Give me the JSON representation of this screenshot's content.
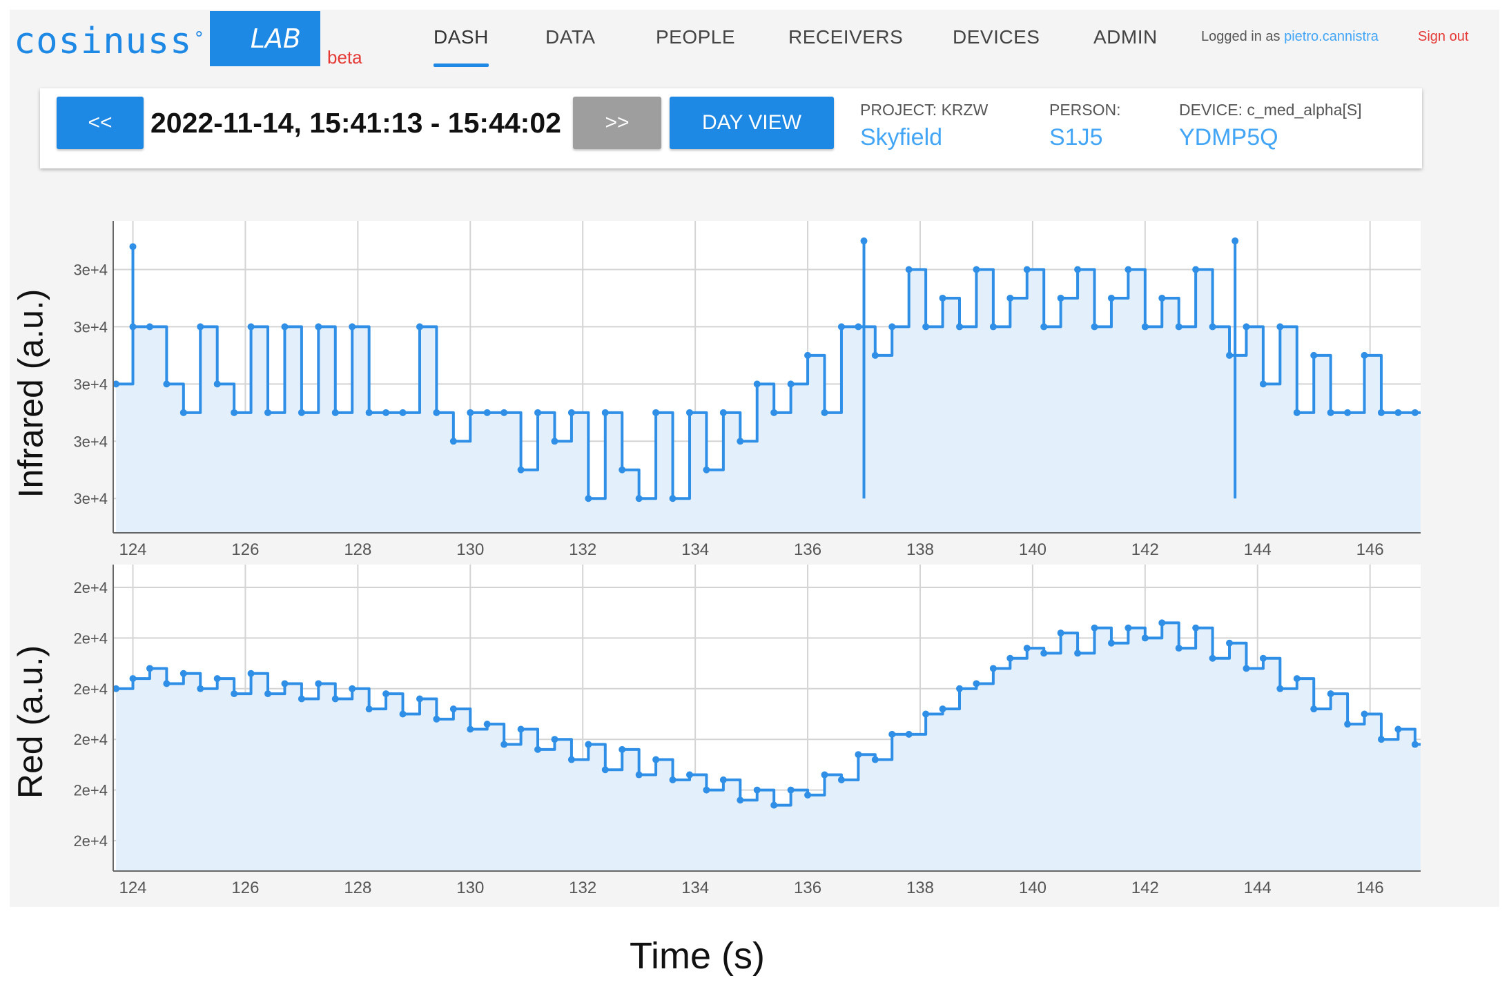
{
  "header": {
    "logo": "cosinuss",
    "logo_mark": "°",
    "lab": "LAB",
    "beta": "beta",
    "nav": [
      "DASH",
      "DATA",
      "PEOPLE",
      "RECEIVERS",
      "DEVICES",
      "ADMIN"
    ],
    "active_nav": "DASH",
    "logged_in_prefix": "Logged in as",
    "user": "pietro.cannistra",
    "sign_out": "Sign out"
  },
  "controls": {
    "prev_label": "<<",
    "range": "2022-11-14, 15:41:13 - 15:44:02",
    "next_label": ">>",
    "day_view_label": "DAY VIEW",
    "project_label": "PROJECT: KRZW",
    "project_value": "Skyfield",
    "person_label": "PERSON:",
    "person_value": "S1J5",
    "device_label": "DEVICE: c_med_alpha[S]",
    "device_value": "YDMP5Q"
  },
  "colors": {
    "accent": "#1e88e5",
    "line": "#2f8fe6",
    "fill": "#e3f0fc",
    "grid": "#d4d4d4",
    "disabled": "#9e9e9e",
    "danger": "#e53935"
  },
  "figure": {
    "x_title": "Time (s)"
  },
  "chart_data": [
    {
      "type": "area",
      "ylabel": "Infrared (a.u.)",
      "xticks": [
        124,
        126,
        128,
        130,
        132,
        134,
        136,
        138,
        140,
        142,
        144,
        146
      ],
      "xlim": [
        123.65,
        146.9
      ],
      "yticks": [
        "3e+4",
        "3e+4",
        "3e+4",
        "3e+4",
        "3e+4"
      ],
      "ytick_levels": [
        4,
        3,
        2,
        1,
        0
      ],
      "ylim": [
        -0.6,
        4.85
      ],
      "grid": true,
      "legend": "none",
      "x": [
        123.7,
        124.0,
        124.3,
        124.6,
        124.9,
        125.2,
        125.5,
        125.8,
        126.1,
        126.4,
        126.7,
        127.0,
        127.3,
        127.6,
        127.9,
        128.2,
        128.5,
        128.8,
        129.1,
        129.4,
        129.7,
        130.0,
        130.3,
        130.6,
        130.9,
        131.2,
        131.5,
        131.8,
        132.1,
        132.4,
        132.7,
        133.0,
        133.3,
        133.6,
        133.9,
        134.2,
        134.5,
        134.8,
        135.1,
        135.4,
        135.7,
        136.0,
        136.3,
        136.6,
        136.9,
        137.2,
        137.5,
        137.8,
        138.1,
        138.4,
        138.7,
        139.0,
        139.3,
        139.6,
        139.9,
        140.2,
        140.5,
        140.8,
        141.1,
        141.4,
        141.7,
        142.0,
        142.3,
        142.6,
        142.9,
        143.2,
        143.5,
        143.8,
        144.1,
        144.4,
        144.7,
        145.0,
        145.3,
        145.6,
        145.9,
        146.2,
        146.5,
        146.8
      ],
      "y": [
        2.0,
        3.0,
        3.0,
        2.0,
        1.5,
        3.0,
        2.0,
        1.5,
        3.0,
        1.5,
        3.0,
        1.5,
        3.0,
        1.5,
        3.0,
        1.5,
        1.5,
        1.5,
        3.0,
        1.5,
        1.0,
        1.5,
        1.5,
        1.5,
        0.5,
        1.5,
        1.0,
        1.5,
        0.0,
        1.5,
        0.5,
        0.0,
        1.5,
        0.0,
        1.5,
        0.5,
        1.5,
        1.0,
        2.0,
        1.5,
        2.0,
        2.5,
        1.5,
        3.0,
        3.0,
        2.5,
        3.0,
        4.0,
        3.0,
        3.5,
        3.0,
        4.0,
        3.0,
        3.5,
        4.0,
        3.0,
        3.5,
        4.0,
        3.0,
        3.5,
        4.0,
        3.0,
        3.5,
        3.0,
        4.0,
        3.0,
        2.5,
        3.0,
        2.0,
        3.0,
        1.5,
        2.5,
        1.5,
        1.5,
        2.5,
        1.5,
        1.5,
        1.5
      ],
      "spikes": [
        {
          "x": 124.0,
          "y": 4.4
        },
        {
          "x": 137.0,
          "y": 4.5
        },
        {
          "x": 143.6,
          "y": 4.5
        }
      ]
    },
    {
      "type": "area",
      "ylabel": "Red (a.u.)",
      "xticks": [
        124,
        126,
        128,
        130,
        132,
        134,
        136,
        138,
        140,
        142,
        144,
        146
      ],
      "xlim": [
        123.65,
        146.9
      ],
      "yticks": [
        "2e+4",
        "2e+4",
        "2e+4",
        "2e+4",
        "2e+4",
        "2e+4"
      ],
      "ytick_levels": [
        5,
        4,
        3,
        2,
        1,
        0
      ],
      "ylim": [
        -0.6,
        5.45
      ],
      "grid": true,
      "legend": "none",
      "x": [
        123.7,
        124.0,
        124.3,
        124.6,
        124.9,
        125.2,
        125.5,
        125.8,
        126.1,
        126.4,
        126.7,
        127.0,
        127.3,
        127.6,
        127.9,
        128.2,
        128.5,
        128.8,
        129.1,
        129.4,
        129.7,
        130.0,
        130.3,
        130.6,
        130.9,
        131.2,
        131.5,
        131.8,
        132.1,
        132.4,
        132.7,
        133.0,
        133.3,
        133.6,
        133.9,
        134.2,
        134.5,
        134.8,
        135.1,
        135.4,
        135.7,
        136.0,
        136.3,
        136.6,
        136.9,
        137.2,
        137.5,
        137.8,
        138.1,
        138.4,
        138.7,
        139.0,
        139.3,
        139.6,
        139.9,
        140.2,
        140.5,
        140.8,
        141.1,
        141.4,
        141.7,
        142.0,
        142.3,
        142.6,
        142.9,
        143.2,
        143.5,
        143.8,
        144.1,
        144.4,
        144.7,
        145.0,
        145.3,
        145.6,
        145.9,
        146.2,
        146.5,
        146.8
      ],
      "y": [
        3.0,
        3.2,
        3.4,
        3.1,
        3.3,
        3.0,
        3.2,
        2.9,
        3.3,
        2.9,
        3.1,
        2.8,
        3.1,
        2.8,
        3.0,
        2.6,
        2.9,
        2.5,
        2.8,
        2.4,
        2.6,
        2.2,
        2.3,
        1.9,
        2.2,
        1.8,
        2.0,
        1.6,
        1.9,
        1.4,
        1.8,
        1.3,
        1.6,
        1.2,
        1.3,
        1.0,
        1.2,
        0.8,
        1.0,
        0.7,
        1.0,
        0.9,
        1.3,
        1.2,
        1.7,
        1.6,
        2.1,
        2.1,
        2.5,
        2.6,
        3.0,
        3.1,
        3.4,
        3.6,
        3.8,
        3.7,
        4.1,
        3.7,
        4.2,
        3.9,
        4.2,
        4.0,
        4.3,
        3.8,
        4.2,
        3.6,
        3.9,
        3.4,
        3.6,
        3.0,
        3.2,
        2.6,
        2.9,
        2.3,
        2.5,
        2.0,
        2.2,
        1.9
      ]
    }
  ]
}
